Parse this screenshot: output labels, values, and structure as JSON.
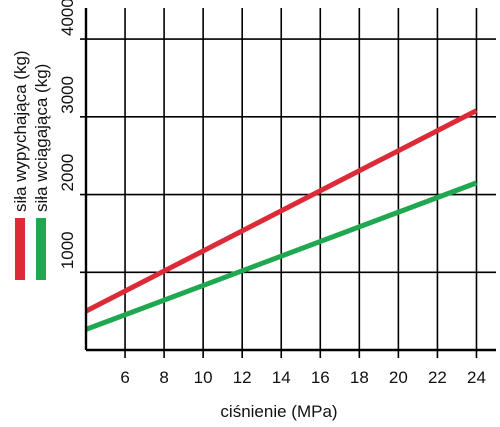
{
  "chart_data": {
    "type": "line",
    "title": "",
    "xlabel": "ciśnienie (MPa)",
    "ylabel": "",
    "xlim": [
      4,
      25
    ],
    "ylim": [
      0,
      4400
    ],
    "xticks": [
      6,
      8,
      10,
      12,
      14,
      16,
      18,
      20,
      22,
      24
    ],
    "yticks": [
      1000,
      2000,
      3000,
      4000
    ],
    "grid": true,
    "legend": "left-vertical",
    "series": [
      {
        "name": "siła wypychająca (kg)",
        "color": "#dc2a37",
        "x": [
          4,
          24
        ],
        "y": [
          500,
          3080
        ]
      },
      {
        "name": "siła wciągająca (kg)",
        "color": "#1fa84f",
        "x": [
          4,
          24
        ],
        "y": [
          265,
          2150
        ]
      }
    ]
  }
}
